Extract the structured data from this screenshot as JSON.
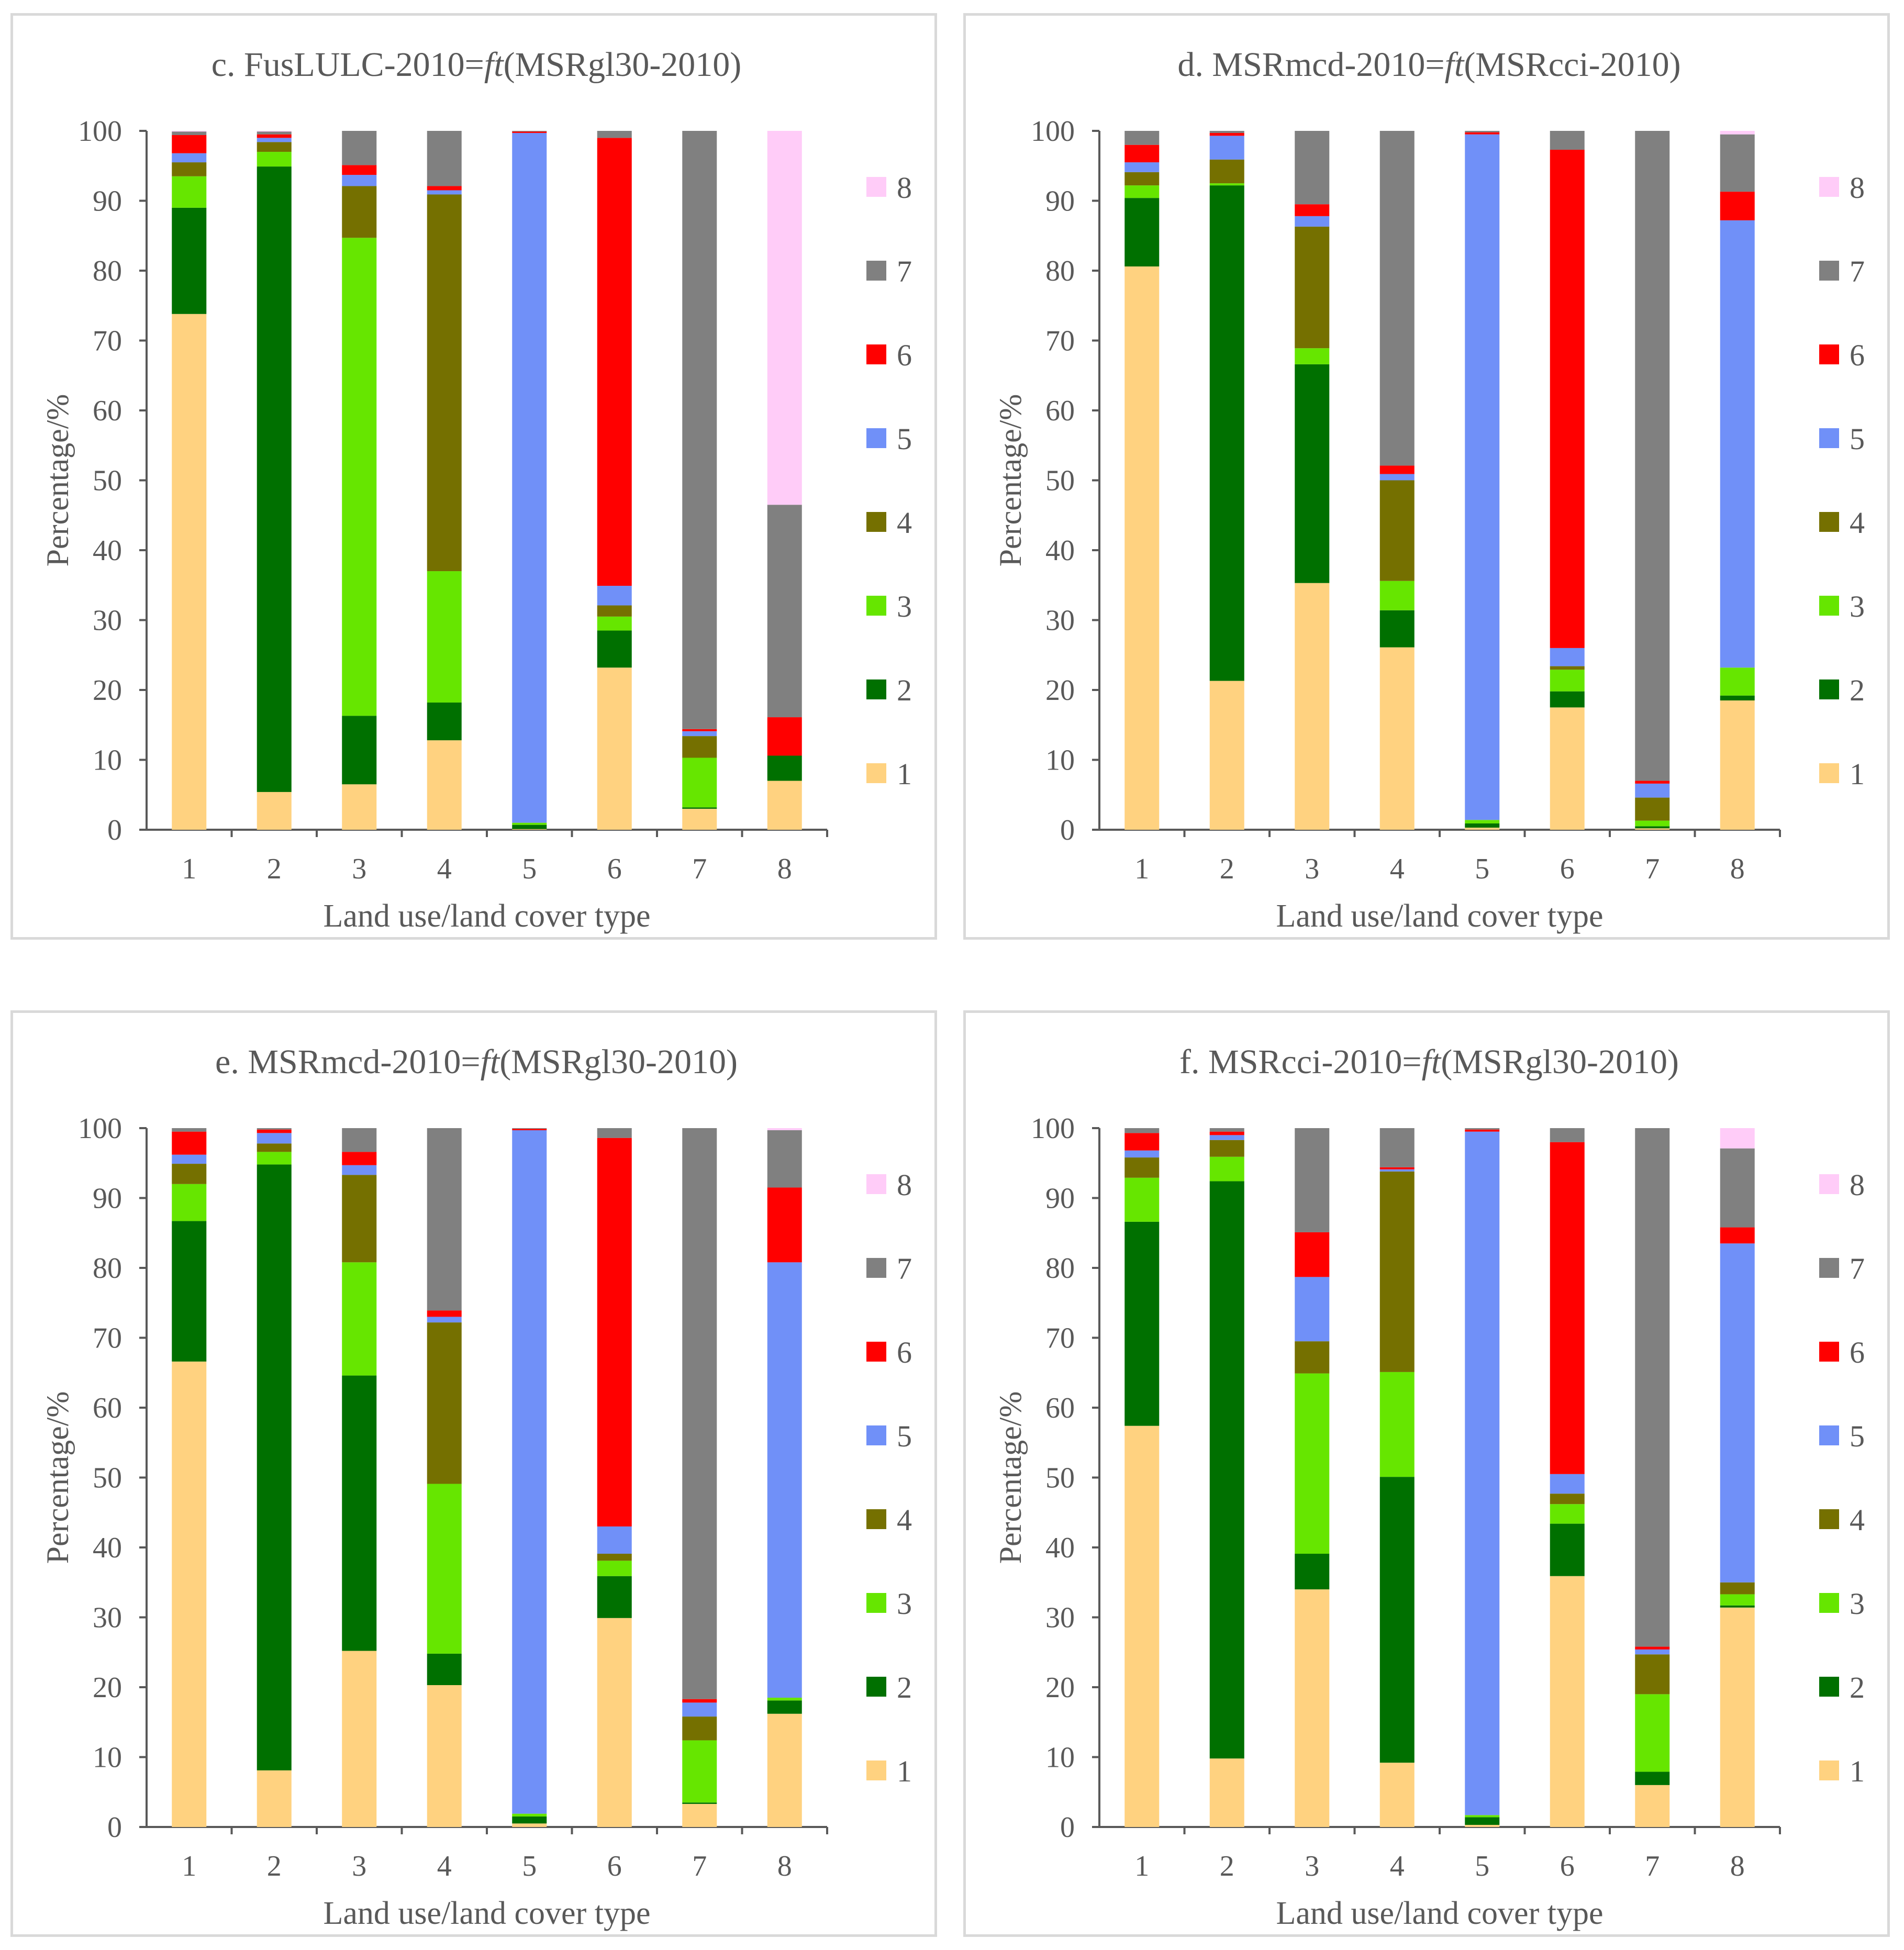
{
  "colors": {
    "1": "#ffd280",
    "2": "#007000",
    "3": "#66e600",
    "4": "#757000",
    "5": "#7090f8",
    "6": "#ff0000",
    "7": "#808080",
    "8": "#ffccf8"
  },
  "legend_labels": [
    "8",
    "7",
    "6",
    "5",
    "4",
    "3",
    "2",
    "1"
  ],
  "chart_data": [
    {
      "type": "bar",
      "stacked": true,
      "title_prefix": "c. FusLULC-2010=",
      "title_italic": "ft",
      "title_suffix": "(MSRgl30-2010)",
      "xlabel": "Land use/land cover type",
      "ylabel": "Percentage/%",
      "ylim": [
        0,
        100
      ],
      "yticks": [
        "0",
        "10",
        "20",
        "30",
        "40",
        "50",
        "60",
        "70",
        "80",
        "90",
        "100"
      ],
      "categories": [
        "1",
        "2",
        "3",
        "4",
        "5",
        "6",
        "7",
        "8"
      ],
      "series": [
        {
          "name": "1",
          "values": [
            73.8,
            5.4,
            6.5,
            12.8,
            0.1,
            23.2,
            3.0,
            7.0
          ]
        },
        {
          "name": "2",
          "values": [
            15.2,
            89.5,
            9.8,
            5.4,
            0.6,
            5.3,
            0.2,
            3.6
          ]
        },
        {
          "name": "3",
          "values": [
            4.5,
            2.1,
            68.4,
            18.8,
            0.3,
            2.0,
            7.1,
            0.0
          ]
        },
        {
          "name": "4",
          "values": [
            2.0,
            1.4,
            7.4,
            53.9,
            0.0,
            1.6,
            3.1,
            0.0
          ]
        },
        {
          "name": "5",
          "values": [
            1.3,
            0.6,
            1.6,
            0.6,
            98.7,
            2.8,
            0.7,
            0.0
          ]
        },
        {
          "name": "6",
          "values": [
            2.6,
            0.5,
            1.4,
            0.6,
            0.2,
            64.1,
            0.3,
            5.5
          ]
        },
        {
          "name": "7",
          "values": [
            0.5,
            0.4,
            4.9,
            7.9,
            0.1,
            1.0,
            85.6,
            30.4
          ]
        },
        {
          "name": "8",
          "values": [
            0.1,
            0.1,
            0.0,
            0.0,
            0.0,
            0.0,
            0.0,
            53.5
          ]
        }
      ]
    },
    {
      "type": "bar",
      "stacked": true,
      "title_prefix": "d. MSRmcd-2010=",
      "title_italic": "ft",
      "title_suffix": "(MSRcci-2010)",
      "xlabel": "Land use/land cover type",
      "ylabel": "Percentage/%",
      "ylim": [
        0,
        100
      ],
      "yticks": [
        "0",
        "10",
        "20",
        "30",
        "40",
        "50",
        "60",
        "70",
        "80",
        "90",
        "100"
      ],
      "categories": [
        "1",
        "2",
        "3",
        "4",
        "5",
        "6",
        "7",
        "8"
      ],
      "series": [
        {
          "name": "1",
          "values": [
            80.6,
            21.3,
            35.3,
            26.1,
            0.3,
            17.5,
            0.2,
            18.5
          ]
        },
        {
          "name": "2",
          "values": [
            9.8,
            70.9,
            31.3,
            5.3,
            0.6,
            2.3,
            0.3,
            0.7
          ]
        },
        {
          "name": "3",
          "values": [
            1.8,
            0.3,
            2.3,
            4.2,
            0.5,
            3.1,
            0.8,
            4.0
          ]
        },
        {
          "name": "4",
          "values": [
            1.9,
            3.4,
            17.4,
            14.4,
            0.0,
            0.5,
            3.3,
            0.0
          ]
        },
        {
          "name": "5",
          "values": [
            1.4,
            3.4,
            1.5,
            0.9,
            98.1,
            2.6,
            2.0,
            64.0
          ]
        },
        {
          "name": "6",
          "values": [
            2.5,
            0.4,
            1.7,
            1.2,
            0.3,
            71.3,
            0.4,
            4.1
          ]
        },
        {
          "name": "7",
          "values": [
            2.0,
            0.3,
            10.5,
            47.9,
            0.2,
            2.7,
            93.0,
            8.2
          ]
        },
        {
          "name": "8",
          "values": [
            0.0,
            0.0,
            0.0,
            0.0,
            0.0,
            0.0,
            0.0,
            0.5
          ]
        }
      ]
    },
    {
      "type": "bar",
      "stacked": true,
      "title_prefix": "e. MSRmcd-2010=",
      "title_italic": "ft",
      "title_suffix": "(MSRgl30-2010)",
      "xlabel": "Land use/land cover type",
      "ylabel": "Percentage/%",
      "ylim": [
        0,
        100
      ],
      "yticks": [
        "0",
        "10",
        "20",
        "30",
        "40",
        "50",
        "60",
        "70",
        "80",
        "90",
        "100"
      ],
      "categories": [
        "1",
        "2",
        "3",
        "4",
        "5",
        "6",
        "7",
        "8"
      ],
      "series": [
        {
          "name": "1",
          "values": [
            66.6,
            8.1,
            25.2,
            20.3,
            0.5,
            29.9,
            3.3,
            16.2
          ]
        },
        {
          "name": "2",
          "values": [
            20.1,
            86.7,
            39.4,
            4.5,
            1.0,
            6.0,
            0.2,
            1.9
          ]
        },
        {
          "name": "3",
          "values": [
            5.3,
            1.8,
            16.2,
            24.3,
            0.4,
            2.2,
            8.9,
            0.4
          ]
        },
        {
          "name": "4",
          "values": [
            2.9,
            1.2,
            12.5,
            23.1,
            0.0,
            1.0,
            3.4,
            0.0
          ]
        },
        {
          "name": "5",
          "values": [
            1.3,
            1.5,
            1.4,
            0.8,
            97.8,
            3.9,
            2.0,
            62.3
          ]
        },
        {
          "name": "6",
          "values": [
            3.3,
            0.5,
            1.9,
            0.9,
            0.2,
            55.6,
            0.5,
            10.7
          ]
        },
        {
          "name": "7",
          "values": [
            0.5,
            0.2,
            3.4,
            26.1,
            0.1,
            1.4,
            81.7,
            8.2
          ]
        },
        {
          "name": "8",
          "values": [
            0.0,
            0.0,
            0.0,
            0.0,
            0.0,
            0.0,
            0.0,
            0.3
          ]
        }
      ]
    },
    {
      "type": "bar",
      "stacked": true,
      "title_prefix": "f. MSRcci-2010=",
      "title_italic": "ft",
      "title_suffix": "(MSRgl30-2010)",
      "xlabel": "Land use/land cover type",
      "ylabel": "Percentage/%",
      "ylim": [
        0,
        100
      ],
      "yticks": [
        "0",
        "10",
        "20",
        "30",
        "40",
        "50",
        "60",
        "70",
        "80",
        "90",
        "100"
      ],
      "categories": [
        "1",
        "2",
        "3",
        "4",
        "5",
        "6",
        "7",
        "8"
      ],
      "series": [
        {
          "name": "1",
          "values": [
            57.4,
            9.8,
            34.0,
            9.2,
            0.3,
            35.9,
            6.0,
            31.4
          ]
        },
        {
          "name": "2",
          "values": [
            29.2,
            82.6,
            5.1,
            40.9,
            1.1,
            7.5,
            1.9,
            0.3
          ]
        },
        {
          "name": "3",
          "values": [
            6.3,
            3.5,
            25.8,
            15.0,
            0.3,
            2.8,
            11.1,
            1.6
          ]
        },
        {
          "name": "4",
          "values": [
            2.9,
            2.4,
            4.6,
            28.7,
            0.0,
            1.5,
            5.7,
            1.7
          ]
        },
        {
          "name": "5",
          "values": [
            1.0,
            0.7,
            9.2,
            0.3,
            97.8,
            2.8,
            0.7,
            48.5
          ]
        },
        {
          "name": "6",
          "values": [
            2.5,
            0.5,
            6.4,
            0.3,
            0.3,
            47.5,
            0.4,
            2.3
          ]
        },
        {
          "name": "7",
          "values": [
            0.7,
            0.5,
            14.9,
            5.6,
            0.2,
            2.0,
            74.2,
            11.3
          ]
        },
        {
          "name": "8",
          "values": [
            0.0,
            0.0,
            0.0,
            0.0,
            0.0,
            0.0,
            0.0,
            2.9
          ]
        }
      ]
    }
  ]
}
